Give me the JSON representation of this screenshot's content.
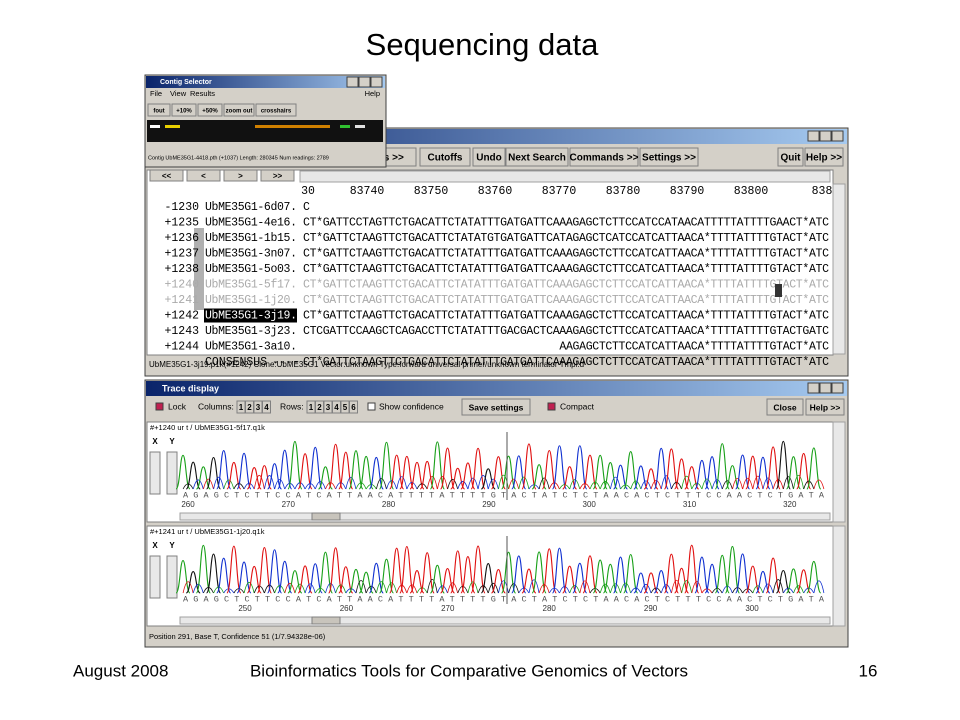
{
  "slide": {
    "title": "Sequencing data",
    "date": "August 2008",
    "footer": "Bioinformatics Tools for Comparative Genomics of Vectors",
    "page_number": "16"
  },
  "contig_selector": {
    "title": "Contig Selector",
    "menu": [
      "File",
      "View",
      "Results"
    ],
    "help": "Help",
    "buttons": [
      "fout",
      "+10%",
      "+50%",
      "zoom out",
      "crosshairs"
    ],
    "status": "Contig UbME35G1-4418.pth (+1037) Length: 280345 Num readings: 2789",
    "nav": [
      "<<",
      "<",
      ">",
      ">>"
    ]
  },
  "aligned_reads": {
    "toolbar_left": [
      "des >>",
      "Cutoffs",
      "Undo",
      "Next Search",
      "Commands >>",
      "Settings >>"
    ],
    "toolbar_right": [
      "Quit",
      "Help >>"
    ],
    "ruler": [
      "30",
      "83740",
      "83750",
      "83760",
      "83770",
      "83780",
      "83790",
      "83800",
      "838"
    ],
    "rows": [
      {
        "number": "-1230",
        "name": "UbME35G1-6d07.",
        "sequence": "C"
      },
      {
        "number": "+1235",
        "name": "UbME35G1-4e16.",
        "sequence": "CT*GATTCCTAGTTCTGACATTCTATATTTGATGATTCAAAGAGCTCTTCCATCCATAACATTTTTATTTTGAACT*ATC"
      },
      {
        "number": "+1236",
        "name": "UbME35G1-1b15.",
        "sequence": "CT*GATTCTAAGTTCTGACATTCTATATGTGATGATTCATAGAGCTCATCCATCATTAACA*TTTTATTTTGTACT*ATC"
      },
      {
        "number": "+1237",
        "name": "UbME35G1-3n07.",
        "sequence": "CT*GATTCTAAGTTCTGACATTCTATATTTGATGATTCAAAGAGCTCTTCCATCATTAACA*TTTTATTTTGTACT*ATC"
      },
      {
        "number": "+1238",
        "name": "UbME35G1-5o03.",
        "sequence": "CT*GATTCTAAGTTCTGACATTCTATATTTGATGATTCAAAGAGCTCTTCCATCATTAACA*TTTTATTTTGTACT*ATC"
      },
      {
        "number": "+1240",
        "name": "UbME35G1-5f17.",
        "sequence": "CT*GATTCTAAGTTCTGACATTCTATATTTGATGATTCAAAGAGCTCTTCCATCATTAACA*TTTTATTTTGTACT*ATC"
      },
      {
        "number": "+1241",
        "name": "UbME35G1-1j20.",
        "sequence": "CT*GATTCTAAGTTCTGACATTCTATATTTGATGATTCAAAGAGCTCTTCCATCATTAACA*TTTTATTTTGTACT*ATC"
      },
      {
        "number": "+1242",
        "name": "UbME35G1-3j19.",
        "sequence": "CT*GATTCTAAGTTCTGACATTCTATATTTGATGATTCAAAGAGCTCTTCCATCATTAACA*TTTTATTTTGTACT*ATC"
      },
      {
        "number": "+1243",
        "name": "UbME35G1-3j23.",
        "sequence": "CTCGATTCCAAGCTCAGACCTTCTATATTTGACGACTCAAAGAGCTCTTCCATCATTAACA*TTTTATTTTGTACTGATC"
      },
      {
        "number": "+1244",
        "name": "UbME35G1-3a10.",
        "sequence": "AAGAGCTCTTCCATCATTAACA*TTTTATTTTGTACT*ATC"
      },
      {
        "number": "CONSENSUS",
        "name": "----",
        "sequence": "CT*GATTCTAAGTTCTGACATTCTATATTTGATGATTCAAAGAGCTCTTCCATCATTAACA*TTTTATTTTGTACT*ATC"
      }
    ],
    "status": "UbME35G1-3j19.p1k(#1242) Clone:UbME35G1 Vector:unknown Type:forward universal primer/unknown terminator Tmpl:d"
  },
  "trace_display": {
    "title": "Trace display",
    "lock": "Lock",
    "columns_label": "Columns:",
    "columns": [
      "1",
      "2",
      "3",
      "4"
    ],
    "rows_label": "Rows:",
    "rows": [
      "1",
      "2",
      "3",
      "4",
      "5",
      "6"
    ],
    "show_confidence": "Show confidence",
    "save_settings": "Save settings",
    "compact": "Compact",
    "close": "Close",
    "help": "Help >>",
    "axis_labels": [
      "X",
      "Y"
    ],
    "traces": [
      {
        "header": "#+1240 ur t / UbME35G1-5f17.q1k",
        "bases": "AGAGCTCTTCCATCATTAACATTTTATTTTGTACTATCTCTAACACTCTTTCCAACTCTGATA",
        "positions": [
          "260",
          "270",
          "280",
          "290",
          "300",
          "310",
          "320"
        ]
      },
      {
        "header": "#+1241 ur t / UbME35G1-1j20.q1k",
        "bases": "AGAGCTCTTCCATCATTAACATTTTATTTTGTACTATCTCTAACACTCTTTCCAACTCTGATA",
        "positions": [
          "250",
          "260",
          "270",
          "280",
          "290",
          "300"
        ]
      }
    ],
    "status": "Position 291, Base T, Confidence 51 (1/7.94328e-06)"
  }
}
